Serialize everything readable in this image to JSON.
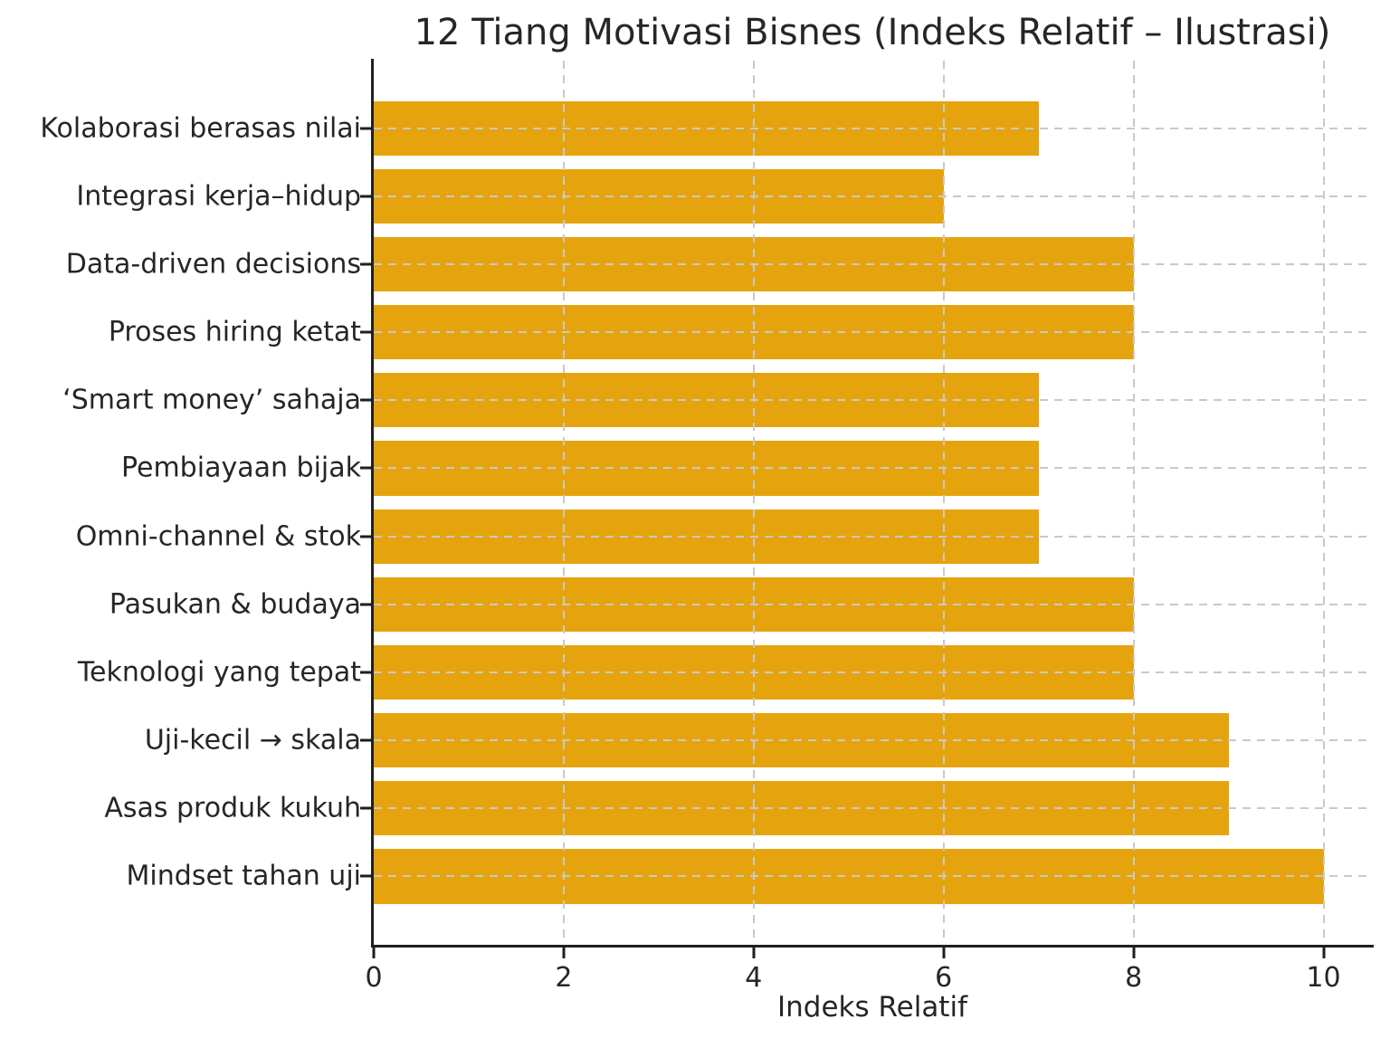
{
  "chart_data": {
    "type": "bar",
    "orientation": "horizontal",
    "title": "12 Tiang Motivasi Bisnes (Indeks Relatif – Ilustrasi)",
    "xlabel": "Indeks Relatif",
    "ylabel": "",
    "categories": [
      "Kolaborasi berasas nilai",
      "Integrasi kerja–hidup",
      "Data-driven decisions",
      "Proses hiring ketat",
      "‘Smart money’ sahaja",
      "Pembiayaan bijak",
      "Omni-channel & stok",
      "Pasukan & budaya",
      "Teknologi yang tepat",
      "Uji-kecil → skala",
      "Asas produk kukuh",
      "Mindset tahan uji"
    ],
    "values": [
      7,
      6,
      8,
      8,
      7,
      7,
      7,
      8,
      8,
      9,
      9,
      10
    ],
    "xlim": [
      0,
      10.5
    ],
    "xticks": [
      0,
      2,
      4,
      6,
      8,
      10
    ],
    "grid": true,
    "grid_style": "dashed",
    "legend": "none",
    "colors": {
      "bar": "#E5A40D",
      "grid": "#c9c9c9",
      "spine": "#1f1f1f",
      "text": "#262626"
    }
  }
}
